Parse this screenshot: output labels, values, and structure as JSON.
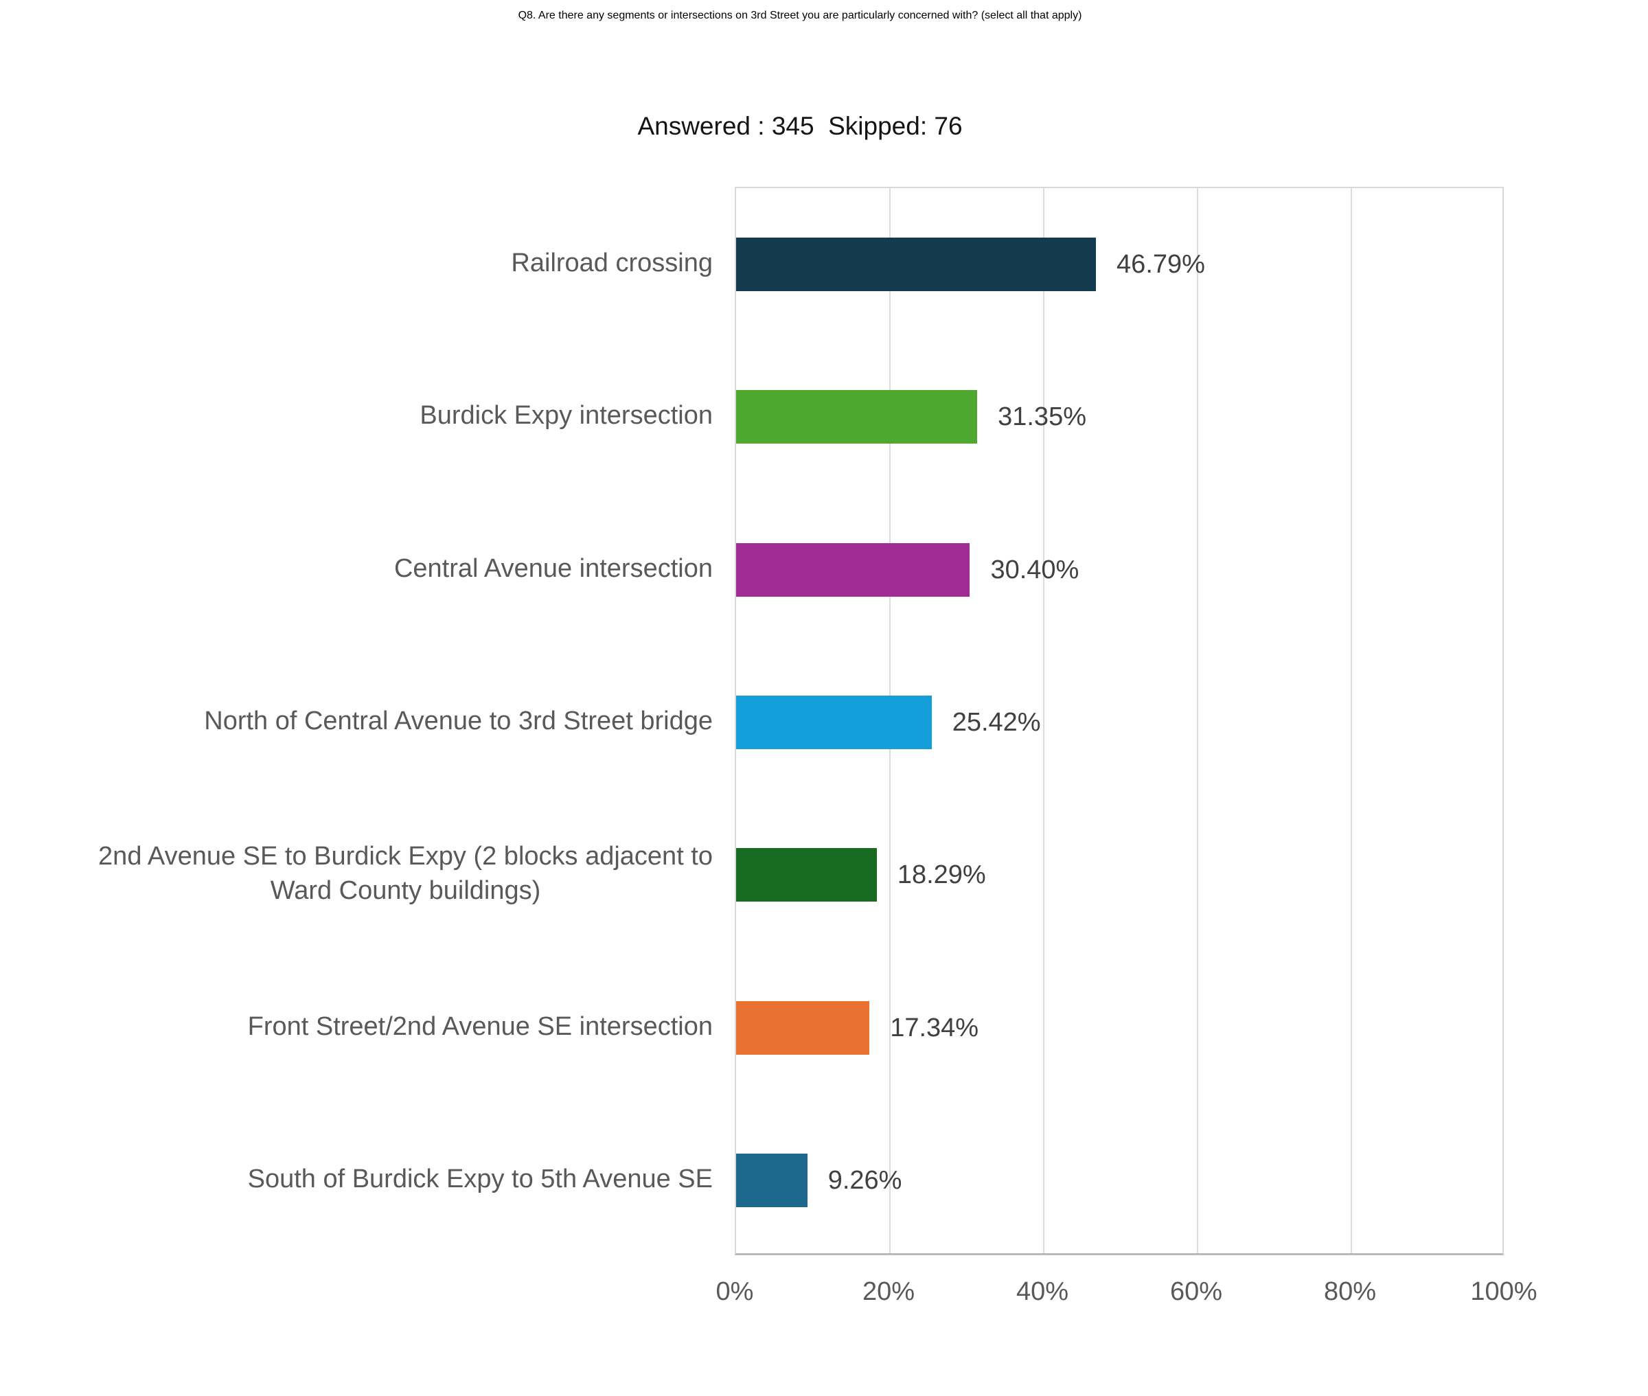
{
  "title": "Q8. Are there any segments or intersections on 3rd Street you are particularly\nconcerned with? (select all that apply)",
  "subtitle": "Answered : 345  Skipped: 76",
  "chart_data": {
    "type": "bar",
    "orientation": "horizontal",
    "title": "Q8. Are there any segments or intersections on 3rd Street you are particularly concerned with? (select all that apply)",
    "answered": 345,
    "skipped": 76,
    "categories": [
      "Railroad crossing",
      "Burdick Expy intersection",
      "Central Avenue intersection",
      "North of Central Avenue to 3rd Street bridge",
      "2nd Avenue SE to Burdick Expy (2 blocks adjacent to\nWard County buildings)",
      "Front Street/2nd Avenue SE intersection",
      "South of Burdick Expy to 5th Avenue SE"
    ],
    "values": [
      46.79,
      31.35,
      30.4,
      25.42,
      18.29,
      17.34,
      9.26
    ],
    "value_labels": [
      "46.79%",
      "31.35%",
      "30.40%",
      "25.42%",
      "18.29%",
      "17.34%",
      "9.26%"
    ],
    "bar_colors": [
      "#143a4f",
      "#4ea72e",
      "#a02b93",
      "#149ed9",
      "#196b24",
      "#e97132",
      "#1d688c"
    ],
    "xlim": [
      0,
      100
    ],
    "x_ticks": [
      "0%",
      "20%",
      "40%",
      "60%",
      "80%",
      "100%"
    ],
    "x_tick_values": [
      0,
      20,
      40,
      60,
      80,
      100
    ],
    "grid": true,
    "legend": false,
    "gridline_color": "#dcdcdc",
    "axis_label_color": "#595959",
    "value_label_color": "#404040"
  }
}
